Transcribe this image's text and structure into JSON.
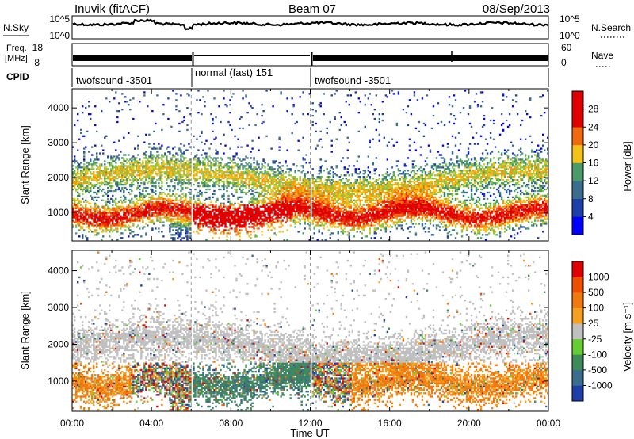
{
  "header": {
    "station": "Inuvik (fitACF)",
    "beam": "Beam 07",
    "date": "08/Sep/2013"
  },
  "labels": {
    "nsky": "N.Sky",
    "freq_line1": "Freq.",
    "freq_line2": "[MHz]",
    "cpid": "CPID",
    "nsearch": "N.Search",
    "nave": "Nave",
    "slant_range": "Slant Range [km]",
    "time_axis": "Time UT",
    "power_cb": "Power [dB]",
    "velocity_cb": "Velocity [m s⁻¹]"
  },
  "noise_panel": {
    "left_ticks": [
      "10^5",
      "10^0"
    ],
    "right_ticks": [
      "10^5",
      "10^0"
    ]
  },
  "freq_panel": {
    "left_ticks": [
      "18",
      "8"
    ],
    "right_ticks": [
      "60",
      "0"
    ]
  },
  "cpid_segments": [
    {
      "label": "twofsound -3501",
      "start_hour": 0,
      "end_hour": 6
    },
    {
      "label": "normal (fast) 151",
      "start_hour": 6,
      "end_hour": 12
    },
    {
      "label": "twofsound -3501",
      "start_hour": 12,
      "end_hour": 24
    }
  ],
  "colors": {
    "power_scale": [
      "#0000ff",
      "#1f3fa8",
      "#3b6e8e",
      "#4b9a6a",
      "#8cc63f",
      "#f2c21a",
      "#f39a12",
      "#f06a0f",
      "#e8310a",
      "#e00000"
    ],
    "velocity_scale": [
      "#1f3fa8",
      "#3b6e8e",
      "#3f8a5a",
      "#66cc33",
      "#c0c0c0",
      "#f3a020",
      "#f07a10",
      "#ee5000",
      "#e00000"
    ]
  },
  "chart_data": [
    {
      "type": "heatmap",
      "title": "",
      "ylabel": "Slant Range [km]",
      "xlabel": "Time UT",
      "x_ticks": [
        "00:00",
        "04:00",
        "08:00",
        "12:00",
        "16:00",
        "20:00",
        "00:00"
      ],
      "xlim": [
        0,
        24
      ],
      "y_ticks": [
        "1000",
        "2000",
        "3000",
        "4000"
      ],
      "ylim": [
        180,
        4550
      ],
      "colorbar": {
        "label": "Power [dB]",
        "ticks": [
          "4",
          "8",
          "12",
          "16",
          "20",
          "24",
          "28"
        ],
        "range": [
          0,
          30
        ]
      }
    },
    {
      "type": "heatmap",
      "title": "",
      "ylabel": "Slant Range [km]",
      "xlabel": "Time UT",
      "x_ticks": [
        "00:00",
        "04:00",
        "08:00",
        "12:00",
        "16:00",
        "20:00",
        "00:00"
      ],
      "xlim": [
        0,
        24
      ],
      "y_ticks": [
        "1000",
        "2000",
        "3000",
        "4000"
      ],
      "ylim": [
        180,
        4550
      ],
      "colorbar": {
        "label": "Velocity [m s⁻¹]",
        "ticks": [
          "1000",
          "500",
          "100",
          "25",
          "-25",
          "-100",
          "-500",
          "-1000"
        ]
      }
    }
  ]
}
